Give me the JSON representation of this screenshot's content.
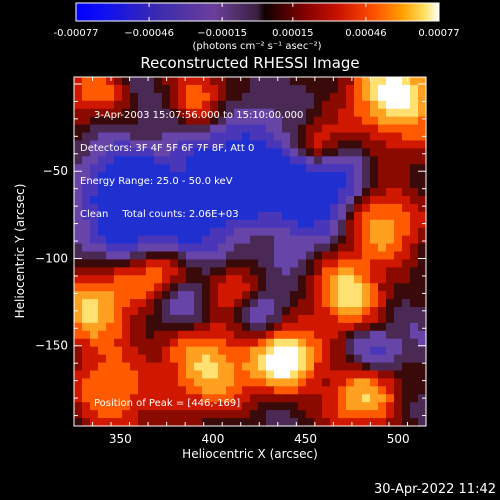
{
  "chart_data": {
    "type": "heatmap",
    "title": "Reconstructed RHESSI Image",
    "xlabel": "Heliocentric X (arcsec)",
    "ylabel": "Heliocentric Y (arcsec)",
    "xlim": [
      325,
      515
    ],
    "ylim": [
      -196,
      4
    ],
    "x_ticks": [
      350,
      400,
      450,
      500
    ],
    "y_ticks": [
      -50,
      -100,
      -150
    ],
    "colorbar": {
      "range": [
        -0.00077,
        0.00077
      ],
      "tick_values": [
        -0.00077,
        -0.00046,
        -0.00015,
        0.00015,
        0.00046,
        0.00077
      ],
      "tick_labels": [
        "-0.00077",
        "−0.00046",
        "−0.00015",
        "0.00015",
        "0.00046",
        "0.00077"
      ],
      "unit_label": "(photons cm⁻² s⁻¹ asec⁻²)"
    },
    "annotations": {
      "time_range": "3-Apr-2003 15:07:56.000 to 15:10:00.000",
      "detectors": "Detectors: 3F 4F 5F 6F 7F 8F, Att 0",
      "energy": "Energy Range: 25.0 - 50.0 keV",
      "method": "Clean",
      "total_counts": "Total counts: 2.06E+03",
      "peak": "Position of Peak = [446,-169]"
    },
    "peak": [
      446,
      -169
    ]
  },
  "footer": {
    "timestamp": "30-Apr-2022 11:42"
  }
}
